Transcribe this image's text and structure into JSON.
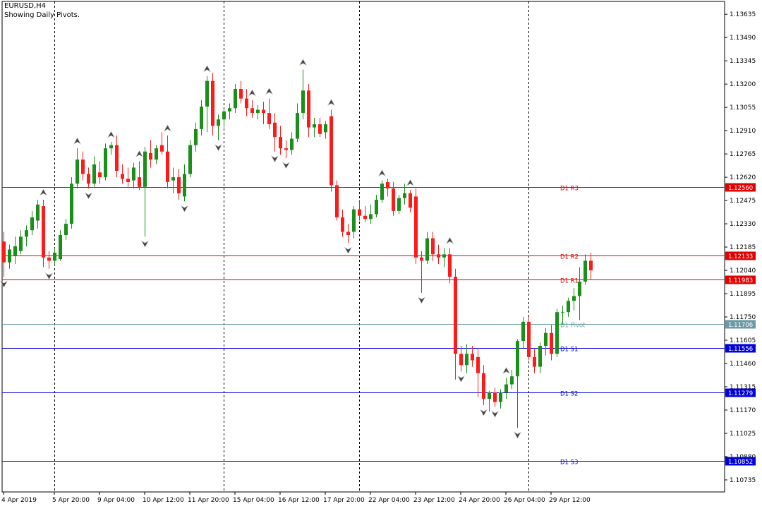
{
  "header": {
    "symbol": "EURUSD,H4",
    "subtitle": "Showing Daily Pivots."
  },
  "colors": {
    "bull": "#1a8f1a",
    "bear": "#ff1a1a",
    "resistance": "#e00000",
    "pivot": "#6b9aa6",
    "support": "#0000dd",
    "axis": "#000000",
    "fractal": "#808080"
  },
  "chart_data": {
    "type": "candlestick",
    "price_range": [
      1.1066,
      1.13715
    ],
    "y_ticks": [
      "1.13635",
      "1.13490",
      "1.13345",
      "1.13200",
      "1.13055",
      "1.12910",
      "1.12765",
      "1.12620",
      "1.12475",
      "1.12330",
      "1.12185",
      "1.12040",
      "1.11895",
      "1.11750",
      "1.11605",
      "1.11460",
      "1.11315",
      "1.11170",
      "1.11025",
      "1.10880",
      "1.10735"
    ],
    "x_labels": [
      {
        "text": "4 Apr 2019",
        "bar": 0
      },
      {
        "text": "5 Apr 20:00",
        "bar": 9
      },
      {
        "text": "9 Apr 04:00",
        "bar": 17
      },
      {
        "text": "10 Apr 12:00",
        "bar": 25
      },
      {
        "text": "11 Apr 20:00",
        "bar": 33
      },
      {
        "text": "15 Apr 04:00",
        "bar": 41
      },
      {
        "text": "16 Apr 12:00",
        "bar": 49
      },
      {
        "text": "17 Apr 20:00",
        "bar": 57
      },
      {
        "text": "22 Apr 04:00",
        "bar": 65
      },
      {
        "text": "23 Apr 12:00",
        "bar": 73
      },
      {
        "text": "24 Apr 20:00",
        "bar": 81
      },
      {
        "text": "26 Apr 04:00",
        "bar": 89
      },
      {
        "text": "29 Apr 12:00",
        "bar": 97
      }
    ],
    "day_separators_bar": [
      9,
      39,
      63,
      93
    ],
    "pivot_lines": [
      {
        "name": "D1 R3",
        "value": 1.1256,
        "price_label": "1.12560",
        "kind": "resistance"
      },
      {
        "name": "D1 R2",
        "value": 1.12133,
        "price_label": "1.12133",
        "kind": "resistance"
      },
      {
        "name": "D1 R1",
        "value": 1.11983,
        "price_label": "1.11983",
        "kind": "resistance"
      },
      {
        "name": "D1 Pivot",
        "value": 1.11706,
        "price_label": "1.11706",
        "kind": "pivot"
      },
      {
        "name": "D1 S1",
        "value": 1.11556,
        "price_label": "1.11556",
        "kind": "support"
      },
      {
        "name": "D1 S2",
        "value": 1.11279,
        "price_label": "1.11279",
        "kind": "support"
      },
      {
        "name": "D1 S3",
        "value": 1.10852,
        "price_label": "1.10852",
        "kind": "support"
      }
    ],
    "pivot_line_labels": [
      "D1 R3",
      "D1 R2",
      "D1 R1",
      "D1 Pivot",
      "D1 S1",
      "D1 S2",
      "D1 S3"
    ],
    "ohlc": [
      [
        1.1222,
        1.1228,
        1.12,
        1.1209
      ],
      [
        1.1209,
        1.122,
        1.1205,
        1.1217
      ],
      [
        1.1213,
        1.1225,
        1.1208,
        1.1219
      ],
      [
        1.1216,
        1.1229,
        1.1214,
        1.1225
      ],
      [
        1.1225,
        1.1232,
        1.1219,
        1.1229
      ],
      [
        1.1229,
        1.1241,
        1.1226,
        1.1237
      ],
      [
        1.1235,
        1.1248,
        1.123,
        1.1245
      ],
      [
        1.1244,
        1.1248,
        1.1206,
        1.1212
      ],
      [
        1.1212,
        1.1216,
        1.1205,
        1.121
      ],
      [
        1.121,
        1.1218,
        1.1207,
        1.1215
      ],
      [
        1.1211,
        1.1229,
        1.121,
        1.1226
      ],
      [
        1.1226,
        1.1236,
        1.1223,
        1.1233
      ],
      [
        1.1233,
        1.1262,
        1.123,
        1.1258
      ],
      [
        1.1258,
        1.128,
        1.1255,
        1.1273
      ],
      [
        1.1273,
        1.1278,
        1.126,
        1.1264
      ],
      [
        1.1264,
        1.1268,
        1.1255,
        1.1258
      ],
      [
        1.1258,
        1.1275,
        1.1256,
        1.127
      ],
      [
        1.1265,
        1.1272,
        1.1258,
        1.1262
      ],
      [
        1.1262,
        1.1283,
        1.126,
        1.128
      ],
      [
        1.128,
        1.1284,
        1.1276,
        1.1282
      ],
      [
        1.1282,
        1.1288,
        1.1262,
        1.1266
      ],
      [
        1.1264,
        1.127,
        1.1258,
        1.1261
      ],
      [
        1.1261,
        1.1268,
        1.1256,
        1.1259
      ],
      [
        1.126,
        1.1271,
        1.1255,
        1.1268
      ],
      [
        1.1262,
        1.1272,
        1.1254,
        1.1256
      ],
      [
        1.1256,
        1.1281,
        1.1225,
        1.1278
      ],
      [
        1.1277,
        1.1285,
        1.1268,
        1.1273
      ],
      [
        1.1273,
        1.1282,
        1.127,
        1.128
      ],
      [
        1.1282,
        1.129,
        1.1276,
        1.1278
      ],
      [
        1.1278,
        1.1288,
        1.1255,
        1.1259
      ],
      [
        1.126,
        1.1268,
        1.1252,
        1.1262
      ],
      [
        1.1262,
        1.1267,
        1.1248,
        1.1252
      ],
      [
        1.125,
        1.127,
        1.1247,
        1.1264
      ],
      [
        1.1264,
        1.1285,
        1.1262,
        1.1282
      ],
      [
        1.1282,
        1.1296,
        1.1278,
        1.1292
      ],
      [
        1.1292,
        1.131,
        1.1288,
        1.1306
      ],
      [
        1.1306,
        1.1325,
        1.129,
        1.1322
      ],
      [
        1.1322,
        1.1327,
        1.1288,
        1.1294
      ],
      [
        1.1294,
        1.1301,
        1.1285,
        1.1298
      ],
      [
        1.1298,
        1.1304,
        1.1293,
        1.1303
      ],
      [
        1.1303,
        1.1308,
        1.1298,
        1.1305
      ],
      [
        1.1305,
        1.132,
        1.1302,
        1.1317
      ],
      [
        1.1317,
        1.1322,
        1.1308,
        1.1311
      ],
      [
        1.1311,
        1.1317,
        1.13,
        1.1305
      ],
      [
        1.1305,
        1.131,
        1.1299,
        1.1302
      ],
      [
        1.1302,
        1.1307,
        1.1298,
        1.1304
      ],
      [
        1.1304,
        1.1309,
        1.1295,
        1.1302
      ],
      [
        1.1302,
        1.1311,
        1.1292,
        1.1295
      ],
      [
        1.1296,
        1.1302,
        1.1278,
        1.1287
      ],
      [
        1.1287,
        1.1294,
        1.1276,
        1.128
      ],
      [
        1.128,
        1.1285,
        1.1274,
        1.1279
      ],
      [
        1.1279,
        1.129,
        1.1276,
        1.1286
      ],
      [
        1.1286,
        1.1308,
        1.1284,
        1.1302
      ],
      [
        1.1302,
        1.1329,
        1.1298,
        1.1316
      ],
      [
        1.1316,
        1.132,
        1.1287,
        1.1293
      ],
      [
        1.1293,
        1.1299,
        1.1287,
        1.1295
      ],
      [
        1.1295,
        1.1299,
        1.1287,
        1.1289
      ],
      [
        1.129,
        1.1297,
        1.1286,
        1.1295
      ],
      [
        1.13,
        1.1304,
        1.1253,
        1.1257
      ],
      [
        1.1257,
        1.126,
        1.1235,
        1.1237
      ],
      [
        1.1237,
        1.1242,
        1.1225,
        1.1228
      ],
      [
        1.1228,
        1.1233,
        1.1221,
        1.1226
      ],
      [
        1.1228,
        1.1244,
        1.1224,
        1.1242
      ],
      [
        1.1242,
        1.1247,
        1.1235,
        1.1238
      ],
      [
        1.1238,
        1.1244,
        1.1234,
        1.1236
      ],
      [
        1.1236,
        1.1245,
        1.1233,
        1.1239
      ],
      [
        1.1239,
        1.1251,
        1.1237,
        1.1248
      ],
      [
        1.1248,
        1.126,
        1.1246,
        1.1258
      ],
      [
        1.1259,
        1.1261,
        1.125,
        1.1255
      ],
      [
        1.1255,
        1.1259,
        1.1238,
        1.1241
      ],
      [
        1.1241,
        1.1251,
        1.1239,
        1.1249
      ],
      [
        1.1249,
        1.1258,
        1.1245,
        1.1252
      ],
      [
        1.1252,
        1.1254,
        1.124,
        1.1243
      ],
      [
        1.125,
        1.1255,
        1.1208,
        1.1212
      ],
      [
        1.1212,
        1.1216,
        1.119,
        1.121
      ],
      [
        1.121,
        1.1228,
        1.1208,
        1.1224
      ],
      [
        1.1224,
        1.1228,
        1.121,
        1.1214
      ],
      [
        1.1214,
        1.122,
        1.1208,
        1.1212
      ],
      [
        1.1212,
        1.1218,
        1.1206,
        1.1214
      ],
      [
        1.1214,
        1.1218,
        1.1196,
        1.12
      ],
      [
        1.12,
        1.1205,
        1.1136,
        1.1152
      ],
      [
        1.1152,
        1.1157,
        1.1141,
        1.1145
      ],
      [
        1.1145,
        1.1158,
        1.114,
        1.1152
      ],
      [
        1.1152,
        1.1157,
        1.1144,
        1.1148
      ],
      [
        1.115,
        1.1155,
        1.1125,
        1.114
      ],
      [
        1.114,
        1.1145,
        1.112,
        1.1124
      ],
      [
        1.1124,
        1.1129,
        1.1116,
        1.1128
      ],
      [
        1.1128,
        1.1131,
        1.1119,
        1.1122
      ],
      [
        1.1122,
        1.113,
        1.1118,
        1.1128
      ],
      [
        1.1128,
        1.1137,
        1.1124,
        1.1133
      ],
      [
        1.1133,
        1.1142,
        1.113,
        1.1138
      ],
      [
        1.1138,
        1.1161,
        1.1106,
        1.116
      ],
      [
        1.116,
        1.1175,
        1.1155,
        1.1172
      ],
      [
        1.1172,
        1.1175,
        1.1148,
        1.115
      ],
      [
        1.115,
        1.1155,
        1.114,
        1.1144
      ],
      [
        1.1144,
        1.1159,
        1.114,
        1.1157
      ],
      [
        1.1157,
        1.1168,
        1.1151,
        1.1165
      ],
      [
        1.1165,
        1.117,
        1.1148,
        1.1152
      ],
      [
        1.1152,
        1.118,
        1.115,
        1.1178
      ],
      [
        1.1178,
        1.1182,
        1.117,
        1.1178
      ],
      [
        1.1178,
        1.1187,
        1.1175,
        1.1185
      ],
      [
        1.1185,
        1.1193,
        1.1179,
        1.1188
      ],
      [
        1.1188,
        1.1206,
        1.1173,
        1.1197
      ],
      [
        1.1197,
        1.1214,
        1.1195,
        1.121
      ],
      [
        1.121,
        1.1215,
        1.1198,
        1.1204
      ]
    ],
    "fractals_up": [
      7,
      13,
      19,
      24,
      29,
      36,
      44,
      47,
      53,
      58,
      67,
      72,
      79,
      89
    ],
    "fractals_down": [
      0,
      8,
      15,
      25,
      32,
      38,
      48,
      50,
      61,
      74,
      81,
      85,
      87,
      91
    ],
    "grid": false,
    "legend": "none"
  }
}
